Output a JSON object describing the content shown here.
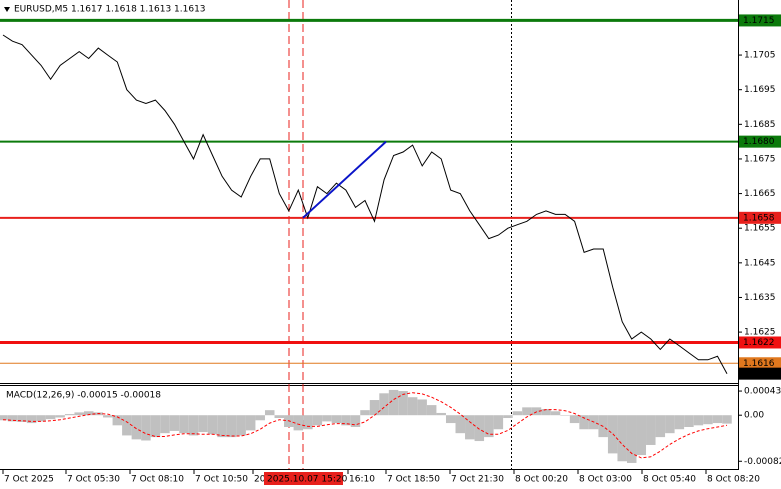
{
  "chart_data": {
    "type": "line",
    "title": "EURUSD,M5  1.1617 1.1618 1.1613 1.1613",
    "color": "#000000",
    "values": [
      1.17108,
      1.1709,
      1.1708,
      1.1705,
      1.1702,
      1.1698,
      1.1702,
      1.1704,
      1.1706,
      1.1704,
      1.1707,
      1.1705,
      1.1703,
      1.1695,
      1.1692,
      1.1691,
      1.1692,
      1.1689,
      1.1685,
      1.168,
      1.1675,
      1.1682,
      1.1676,
      1.167,
      1.1666,
      1.1664,
      1.167,
      1.1675,
      1.1675,
      1.1665,
      1.166,
      1.1666,
      1.1658,
      1.1667,
      1.1665,
      1.1668,
      1.1666,
      1.1661,
      1.1663,
      1.1657,
      1.1669,
      1.1676,
      1.1677,
      1.1679,
      1.1673,
      1.1677,
      1.1675,
      1.1666,
      1.1665,
      1.166,
      1.1656,
      1.1652,
      1.1653,
      1.1655,
      1.1656,
      1.1657,
      1.1659,
      1.166,
      1.1659,
      1.1659,
      1.1657,
      1.1648,
      1.1649,
      1.1649,
      1.1638,
      1.1628,
      1.1623,
      1.1625,
      1.1623,
      1.162,
      1.1623,
      1.1621,
      1.1619,
      1.1617,
      1.1617,
      1.1618,
      1.1613
    ],
    "ylim": [
      1.16103,
      1.17209
    ],
    "yticks": [
      1.1705,
      1.1695,
      1.1685,
      1.1675,
      1.1665,
      1.1655,
      1.1645,
      1.1635,
      1.1625
    ],
    "levels": [
      {
        "value": 1.1715,
        "color": "#0b7a0b",
        "width": 3
      },
      {
        "value": 1.168,
        "label": "1.1680",
        "color": "#0b7a0b",
        "width": 2
      },
      {
        "value": 1.1658,
        "color": "#e8201c",
        "width": 2
      },
      {
        "value": 1.1622,
        "color": "#f01010",
        "width": 3
      },
      {
        "value": 1.1616,
        "color": "#e0781e",
        "width": 1
      },
      {
        "value": 1.1613,
        "color": "#000000",
        "width": 0
      }
    ],
    "trendline": {
      "values": [
        1.1658,
        1.168
      ],
      "color": "#0a14c8"
    },
    "time_labels": [
      "7 Oct 2025",
      "7 Oct 05:30",
      "7 Oct 08:10",
      "7 Oct 10:50",
      "20",
      "16:10",
      "7 Oct 18:50",
      "7 Oct 21:30",
      "8 Oct 00:20",
      "8 Oct 03:00",
      "8 Oct 05:40",
      "8 Oct 08:20"
    ],
    "crosshair_time": "2025.10.07 15:20",
    "macd": {
      "title": "MACD(12,26,9) -0.00015 -0.00018",
      "ylim": [
        -0.00094,
        0.00052
      ],
      "yticks": [
        0.00043,
        {
          "value": 0,
          "label": "0.00"
        },
        -0.00082
      ],
      "histogram": {
        "color": "#c0c0c0",
        "values": [
          -9e-05,
          -0.00011,
          -0.00012,
          -0.00014,
          -0.00011,
          -7e-05,
          -4e-05,
          2e-05,
          5e-05,
          7e-05,
          5e-05,
          -4e-05,
          -0.00018,
          -0.00036,
          -0.00043,
          -0.00045,
          -0.00039,
          -0.00032,
          -0.00028,
          -0.00032,
          -0.00036,
          -0.0003,
          -0.00034,
          -0.00039,
          -0.00039,
          -0.00036,
          -0.00027,
          -9e-05,
          9e-05,
          -5e-05,
          -0.00021,
          -0.00027,
          -0.00025,
          -0.00018,
          -0.00011,
          -0.00014,
          -0.00018,
          -0.00021,
          9e-05,
          0.00027,
          0.00039,
          0.00045,
          0.00043,
          0.00032,
          0.00028,
          0.00018,
          4e-05,
          -0.00014,
          -0.00032,
          -0.00043,
          -0.00046,
          -0.00039,
          -0.00025,
          -5e-05,
          7e-05,
          0.00014,
          0.00014,
          0.00011,
          7e-05,
          0,
          -0.00014,
          -0.00025,
          -0.00025,
          -0.00039,
          -0.00068,
          -0.00082,
          -0.00085,
          -0.00071,
          -0.00053,
          -0.00039,
          -0.00032,
          -0.00025,
          -0.00021,
          -0.00018,
          -0.00016,
          -0.00014,
          -0.00015
        ]
      },
      "signal": {
        "color": "#ff0000",
        "values": [
          -8e-05,
          -9e-05,
          -0.0001,
          -0.00011,
          -0.00011,
          -0.0001,
          -8e-05,
          -5e-05,
          -2e-05,
          1e-05,
          3e-05,
          2e-05,
          -3e-05,
          -0.00012,
          -0.00024,
          -0.00033,
          -0.00038,
          -0.00038,
          -0.00035,
          -0.00033,
          -0.00033,
          -0.00034,
          -0.00034,
          -0.00036,
          -0.00037,
          -0.00037,
          -0.00033,
          -0.00025,
          -0.00014,
          -8e-05,
          -0.0001,
          -0.00016,
          -0.0002,
          -0.0002,
          -0.00017,
          -0.00015,
          -0.00015,
          -0.00017,
          -0.00012,
          0,
          0.00014,
          0.00028,
          0.00037,
          0.0004,
          0.00038,
          0.00032,
          0.00024,
          0.00014,
          2e-05,
          -0.00012,
          -0.00025,
          -0.00034,
          -0.00034,
          -0.00027,
          -0.00015,
          -3e-05,
          6e-05,
          0.0001,
          0.0001,
          8e-05,
          3e-05,
          -5e-05,
          -0.00012,
          -0.0002,
          -0.00033,
          -0.00052,
          -0.00068,
          -0.00076,
          -0.00074,
          -0.00064,
          -0.00052,
          -0.00042,
          -0.00034,
          -0.00028,
          -0.00024,
          -0.00021,
          -0.00018
        ]
      }
    }
  }
}
